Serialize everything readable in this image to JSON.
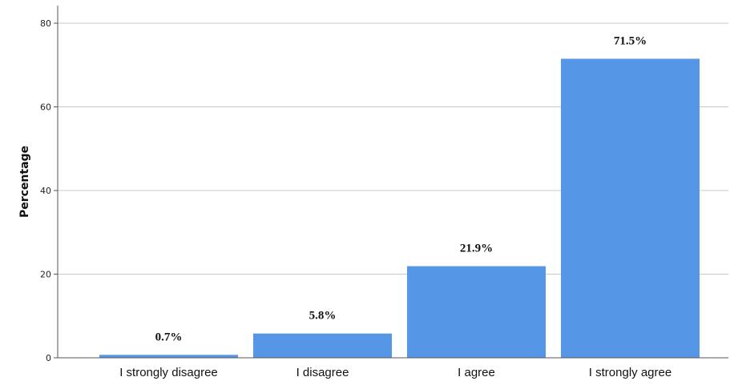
{
  "chart_data": {
    "type": "bar",
    "title": "",
    "xlabel": "",
    "ylabel": "Percentage",
    "categories": [
      "I strongly disagree",
      "I disagree",
      "I agree",
      "I strongly agree"
    ],
    "values": [
      0.7,
      5.8,
      21.9,
      71.5
    ],
    "data_labels": [
      "0.7%",
      "5.8%",
      "21.9%",
      "71.5%"
    ],
    "ylim": [
      0,
      80
    ],
    "yticks": [
      0,
      20,
      40,
      60,
      80
    ],
    "ytick_labels": [
      "0",
      "20",
      "40",
      "60",
      "80"
    ],
    "grid": true,
    "bar_color": "#5596e6",
    "grid_color": "#c8c8c8",
    "axis_color": "#555555"
  }
}
